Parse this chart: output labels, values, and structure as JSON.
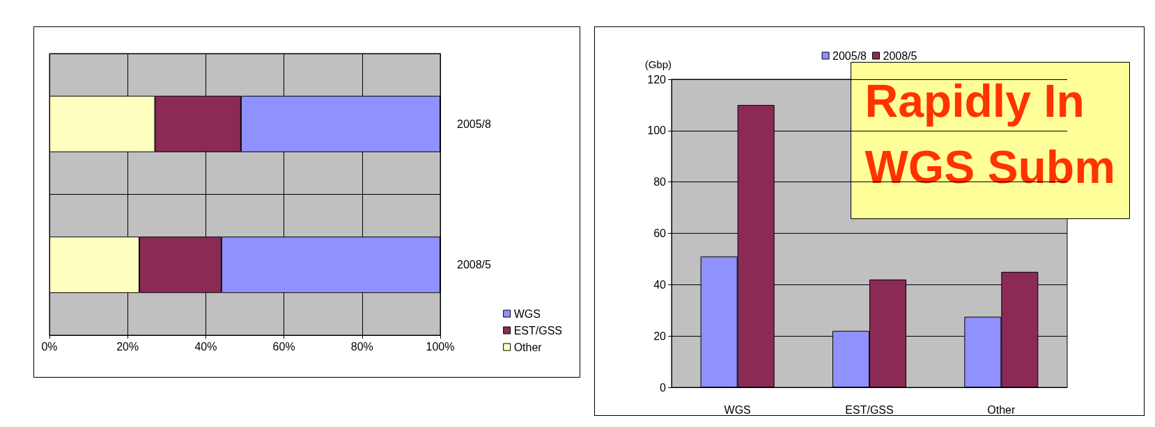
{
  "chart_data": [
    {
      "type": "bar",
      "orientation": "horizontal",
      "stacked": true,
      "categories": [
        "2005/8",
        "2008/5"
      ],
      "series": [
        {
          "name": "Other",
          "color": "#ffffc0",
          "values": [
            27,
            23
          ]
        },
        {
          "name": "EST/GSS",
          "color": "#8b2a55",
          "values": [
            22,
            21
          ]
        },
        {
          "name": "WGS",
          "color": "#9090ff",
          "values": [
            51,
            56
          ]
        }
      ],
      "xlim": [
        0,
        100
      ],
      "xticks": [
        {
          "value": 0,
          "label": "0%"
        },
        {
          "value": 20,
          "label": "20%"
        },
        {
          "value": 40,
          "label": "40%"
        },
        {
          "value": 60,
          "label": "60%"
        },
        {
          "value": 80,
          "label": "80%"
        },
        {
          "value": 100,
          "label": "100%"
        }
      ],
      "grid": true,
      "legend": "bottom right"
    },
    {
      "type": "bar",
      "categories": [
        "WGS",
        "EST/GSS",
        "Other"
      ],
      "ylabel": "(Gbp)",
      "series": [
        {
          "name": "2005/8",
          "color": "#9090ff",
          "values": [
            51,
            22,
            27.5
          ]
        },
        {
          "name": "2008/5",
          "color": "#8b2a55",
          "values": [
            110,
            42,
            45
          ]
        }
      ],
      "ylim": [
        0,
        120
      ],
      "yticks": [
        0,
        20,
        40,
        60,
        80,
        100,
        120
      ],
      "grid": "y",
      "legend": "top",
      "annotations": [
        "Rapidly In",
        "WGS Subm"
      ]
    }
  ]
}
